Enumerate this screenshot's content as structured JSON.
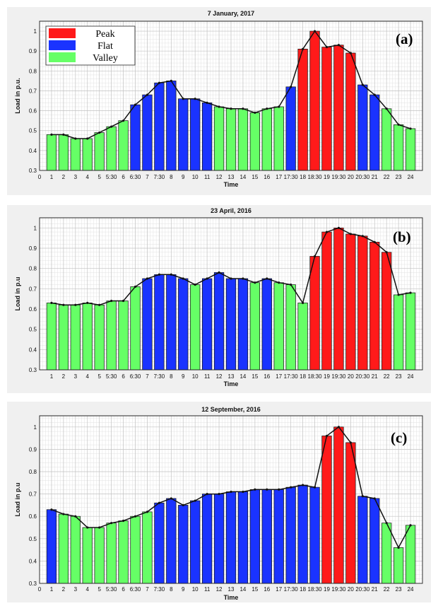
{
  "chart_data": [
    {
      "type": "bar",
      "title": "7 January, 2017",
      "tag": "(a)",
      "xlabel": "Time",
      "ylabel": "Load in p.u.",
      "ylim": [
        0.3,
        1.05
      ],
      "ytick_labels": [
        "0.3",
        "0.4",
        "0.5",
        "0.6",
        "0.7",
        "0.8",
        "0.9",
        "1"
      ],
      "categories": [
        "1",
        "2",
        "3",
        "4",
        "5",
        "5:30",
        "6",
        "6:30",
        "7",
        "7:30",
        "8",
        "9",
        "10",
        "11",
        "12",
        "13",
        "14",
        "15",
        "16",
        "17",
        "17:30",
        "18",
        "18:30",
        "19",
        "19:30",
        "20",
        "20:30",
        "21",
        "22",
        "23",
        "24"
      ],
      "values": [
        0.48,
        0.48,
        0.46,
        0.46,
        0.49,
        0.52,
        0.55,
        0.63,
        0.68,
        0.74,
        0.75,
        0.66,
        0.66,
        0.64,
        0.62,
        0.61,
        0.61,
        0.59,
        0.61,
        0.62,
        0.72,
        0.91,
        1.0,
        0.92,
        0.93,
        0.89,
        0.73,
        0.68,
        0.61,
        0.53,
        0.51
      ],
      "period": [
        "Valley",
        "Valley",
        "Valley",
        "Valley",
        "Valley",
        "Valley",
        "Valley",
        "Flat",
        "Flat",
        "Flat",
        "Flat",
        "Flat",
        "Flat",
        "Flat",
        "Valley",
        "Valley",
        "Valley",
        "Valley",
        "Valley",
        "Valley",
        "Flat",
        "Peak",
        "Peak",
        "Peak",
        "Peak",
        "Peak",
        "Flat",
        "Flat",
        "Valley",
        "Valley",
        "Valley"
      ],
      "legend": [
        {
          "name": "Peak",
          "color": "#ff1a1a"
        },
        {
          "name": "Flat",
          "color": "#1a33ff"
        },
        {
          "name": "Valley",
          "color": "#66ff66"
        }
      ],
      "legend_position": "top-left",
      "grid": true
    },
    {
      "type": "bar",
      "title": "23 April, 2016",
      "tag": "(b)",
      "xlabel": "Time",
      "ylabel": "Load in p.u",
      "ylim": [
        0.3,
        1.05
      ],
      "ytick_labels": [
        "0.3",
        "0.4",
        "0.5",
        "0.6",
        "0.7",
        "0.8",
        "0.9",
        "1"
      ],
      "categories": [
        "1",
        "2",
        "3",
        "4",
        "5",
        "5:30",
        "6",
        "6:30",
        "7",
        "7:30",
        "8",
        "9",
        "10",
        "11",
        "12",
        "13",
        "14",
        "15",
        "16",
        "17",
        "17:30",
        "18",
        "18:30",
        "19",
        "19:30",
        "20",
        "20:30",
        "21",
        "22",
        "23",
        "24"
      ],
      "values": [
        0.63,
        0.62,
        0.62,
        0.63,
        0.62,
        0.64,
        0.64,
        0.71,
        0.75,
        0.77,
        0.77,
        0.75,
        0.72,
        0.75,
        0.78,
        0.75,
        0.75,
        0.73,
        0.75,
        0.73,
        0.72,
        0.63,
        0.86,
        0.98,
        1.0,
        0.97,
        0.96,
        0.93,
        0.88,
        0.67,
        0.68
      ],
      "period": [
        "Valley",
        "Valley",
        "Valley",
        "Valley",
        "Valley",
        "Valley",
        "Valley",
        "Valley",
        "Flat",
        "Flat",
        "Flat",
        "Flat",
        "Valley",
        "Flat",
        "Flat",
        "Flat",
        "Flat",
        "Valley",
        "Flat",
        "Valley",
        "Valley",
        "Valley",
        "Peak",
        "Peak",
        "Peak",
        "Peak",
        "Peak",
        "Peak",
        "Peak",
        "Valley",
        "Valley"
      ],
      "grid": true
    },
    {
      "type": "bar",
      "title": "12 September, 2016",
      "tag": "(c)",
      "xlabel": "Time",
      "ylabel": "Load in p.u",
      "ylim": [
        0.3,
        1.05
      ],
      "ytick_labels": [
        "0.3",
        "0.4",
        "0.5",
        "0.6",
        "0.7",
        "0.8",
        "0.9",
        "1"
      ],
      "categories": [
        "1",
        "2",
        "3",
        "4",
        "5",
        "5:30",
        "6",
        "6:30",
        "7",
        "7:30",
        "8",
        "9",
        "10",
        "11",
        "12",
        "13",
        "14",
        "15",
        "16",
        "17",
        "17:30",
        "18",
        "18:30",
        "19",
        "19:30",
        "20",
        "20:30",
        "21",
        "22",
        "23",
        "24"
      ],
      "values": [
        0.63,
        0.61,
        0.6,
        0.55,
        0.55,
        0.57,
        0.58,
        0.6,
        0.62,
        0.66,
        0.68,
        0.65,
        0.67,
        0.7,
        0.7,
        0.71,
        0.71,
        0.72,
        0.72,
        0.72,
        0.73,
        0.74,
        0.73,
        0.96,
        1.0,
        0.93,
        0.69,
        0.68,
        0.57,
        0.46,
        0.56
      ],
      "period": [
        "Flat",
        "Valley",
        "Valley",
        "Valley",
        "Valley",
        "Valley",
        "Valley",
        "Valley",
        "Valley",
        "Flat",
        "Flat",
        "Flat",
        "Flat",
        "Flat",
        "Flat",
        "Flat",
        "Flat",
        "Flat",
        "Flat",
        "Flat",
        "Flat",
        "Flat",
        "Flat",
        "Peak",
        "Peak",
        "Peak",
        "Flat",
        "Flat",
        "Valley",
        "Valley",
        "Valley"
      ],
      "grid": true
    }
  ]
}
